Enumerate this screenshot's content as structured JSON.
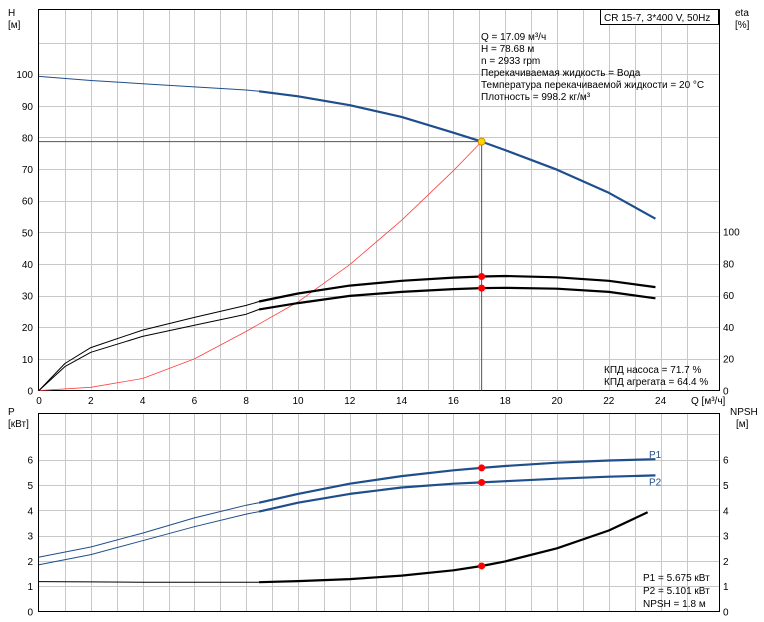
{
  "chart_data": [
    {
      "id": "head_eta",
      "type": "line",
      "title_box": "CR 15-7, 3*400 V, 50Hz",
      "left_axis": {
        "name": "H",
        "unit": "[м]",
        "ylim": [
          0,
          110
        ],
        "ticks": [
          0,
          10,
          20,
          30,
          40,
          50,
          60,
          70,
          80,
          90,
          100
        ]
      },
      "right_axis": {
        "name": "eta",
        "unit": "[%]",
        "ylim": [
          0,
          110
        ],
        "ticks": [
          0,
          20,
          40,
          60,
          80,
          100
        ]
      },
      "x_axis": {
        "label": "Q [м³/ч]",
        "xlim": [
          0,
          25
        ],
        "ticks": [
          0,
          2,
          4,
          6,
          8,
          10,
          12,
          14,
          16,
          18,
          20,
          22,
          24
        ]
      },
      "grid": true,
      "info": [
        "Q = 17.09 м³/ч",
        "H = 78.68 м",
        "n = 2933 rpm",
        "Перекачиваемая жидкость = Вода",
        "Температура перекачиваемой жидкости = 20 °C",
        "Плотность = 998.2 кг/м³"
      ],
      "bottom_info": [
        "КПД насоса = 71.7 %",
        "КПД агрегата = 64.4 %"
      ],
      "series": [
        {
          "axis": "left",
          "color": "#1f4e8c",
          "x": [
            0,
            2,
            4,
            6,
            8,
            8.5,
            10,
            12,
            14,
            16,
            17.09,
            18,
            20,
            22,
            23.8
          ],
          "y": [
            99.3,
            98,
            97,
            96,
            95,
            94.6,
            93,
            90.2,
            86.5,
            81.5,
            78.68,
            76,
            69.8,
            62.5,
            54.3
          ]
        },
        {
          "axis": "left",
          "color": "#ff4040",
          "x": [
            0,
            2,
            4,
            6,
            8,
            10,
            12,
            14,
            16,
            17.09
          ],
          "y": [
            0,
            1,
            3.8,
            10,
            18.7,
            28,
            39.8,
            53.8,
            69.5,
            78.68
          ]
        },
        {
          "axis": "right",
          "color": "#000000",
          "x": [
            0,
            1,
            2,
            4,
            6,
            8,
            8.5,
            10,
            12,
            14,
            16,
            17.09,
            18,
            20,
            22,
            23.8
          ],
          "y": [
            0,
            17,
            27,
            38,
            46,
            53.5,
            56,
            61,
            66,
            69,
            71,
            71.7,
            72,
            71.2,
            69,
            65
          ]
        },
        {
          "axis": "right",
          "color": "#000000",
          "x": [
            0,
            1,
            2,
            4,
            6,
            8,
            8.5,
            10,
            12,
            14,
            16,
            17.09,
            18,
            20,
            22,
            23.8
          ],
          "y": [
            0,
            15,
            24,
            34,
            41,
            48,
            51,
            55,
            59.5,
            62,
            63.8,
            64.4,
            64.6,
            64,
            62,
            58
          ]
        }
      ],
      "points": [
        {
          "axis": "left",
          "x": 17.09,
          "y": 78.68,
          "color": "#ffd400"
        },
        {
          "axis": "right",
          "x": 17.09,
          "y": 71.7,
          "color": "#ff0000"
        },
        {
          "axis": "right",
          "x": 17.09,
          "y": 64.4,
          "color": "#ff0000"
        }
      ]
    },
    {
      "id": "power_npsh",
      "type": "line",
      "left_axis": {
        "name": "P",
        "unit": "[кВт]",
        "ylim": [
          0,
          7
        ],
        "ticks": [
          0,
          1,
          2,
          3,
          4,
          5,
          6
        ]
      },
      "right_axis": {
        "name": "NPSH",
        "unit": "[м]",
        "ylim": [
          0,
          7
        ],
        "ticks": [
          0,
          1,
          2,
          3,
          4,
          5,
          6
        ]
      },
      "x_axis": {
        "xlim": [
          0,
          25
        ]
      },
      "grid": true,
      "bottom_info": [
        "P1 = 5.675 кВт",
        "P2 = 5.101 кВт",
        "NPSH = 1.8 м"
      ],
      "series": [
        {
          "name": "P1",
          "axis": "left",
          "color": "#1f4e8c",
          "x": [
            0,
            2,
            4,
            6,
            8,
            8.5,
            10,
            12,
            14,
            16,
            17.09,
            18,
            20,
            22,
            23.8
          ],
          "y": [
            2.15,
            2.55,
            3.1,
            3.7,
            4.2,
            4.3,
            4.65,
            5.05,
            5.35,
            5.58,
            5.675,
            5.75,
            5.88,
            5.97,
            6.02
          ]
        },
        {
          "name": "P2",
          "axis": "left",
          "color": "#1f4e8c",
          "x": [
            0,
            2,
            4,
            6,
            8,
            8.5,
            10,
            12,
            14,
            16,
            17.09,
            18,
            20,
            22,
            23.8
          ],
          "y": [
            1.85,
            2.25,
            2.8,
            3.35,
            3.85,
            3.95,
            4.3,
            4.65,
            4.9,
            5.05,
            5.101,
            5.15,
            5.25,
            5.33,
            5.38
          ]
        },
        {
          "axis": "right",
          "color": "#000000",
          "x": [
            0,
            2,
            4,
            6,
            8,
            8.5,
            10,
            12,
            14,
            16,
            17.09,
            18,
            20,
            22,
            23.5
          ],
          "y": [
            1.18,
            1.17,
            1.16,
            1.16,
            1.16,
            1.16,
            1.2,
            1.28,
            1.42,
            1.63,
            1.8,
            1.98,
            2.5,
            3.2,
            3.92
          ]
        }
      ],
      "points": [
        {
          "axis": "left",
          "x": 17.09,
          "y": 5.675,
          "color": "#ff0000"
        },
        {
          "axis": "left",
          "x": 17.09,
          "y": 5.101,
          "color": "#ff0000"
        },
        {
          "axis": "right",
          "x": 17.09,
          "y": 1.8,
          "color": "#ff0000"
        }
      ]
    }
  ]
}
